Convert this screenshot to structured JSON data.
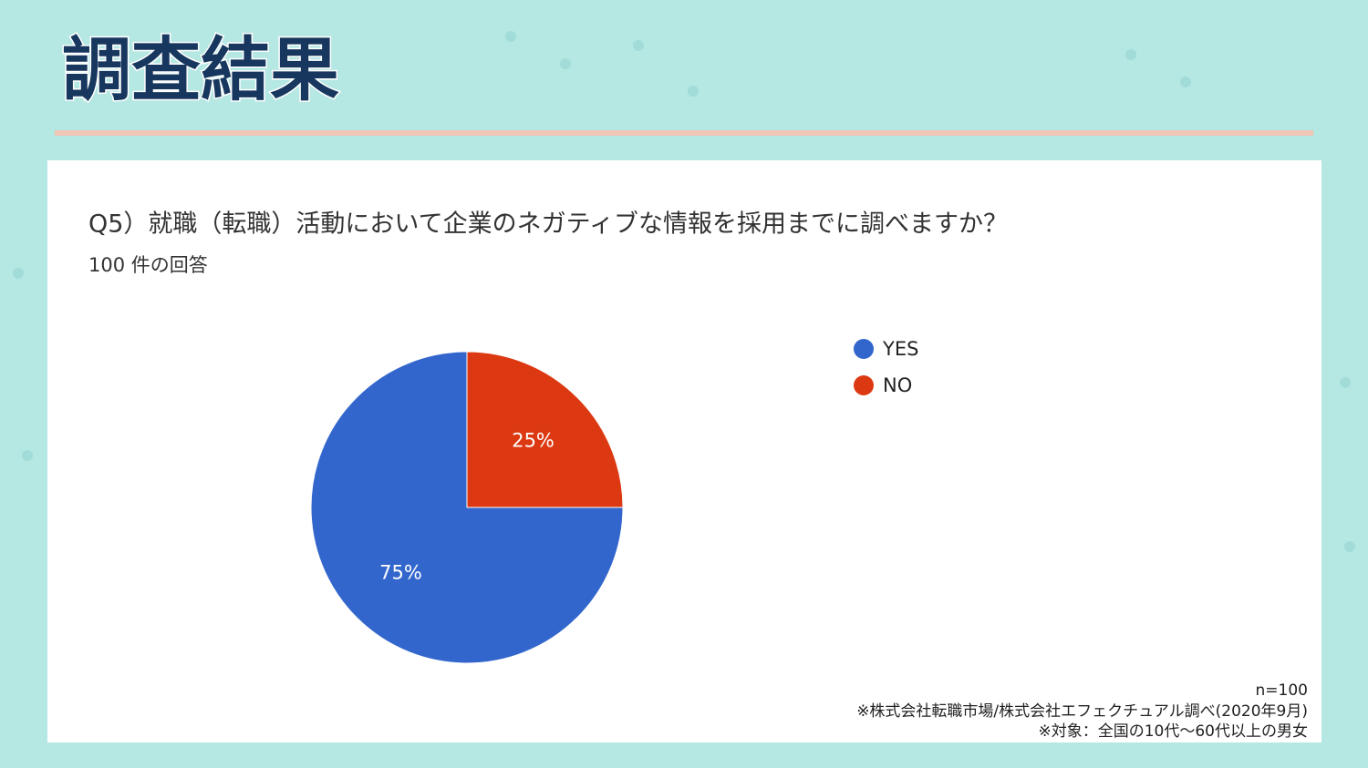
{
  "slide": {
    "title": "調査結果"
  },
  "chart_data": {
    "type": "pie",
    "title": "Q5）就職（転職）活動において企業のネガティブな情報を採用までに調べますか？",
    "subtitle": "100 件の回答",
    "categories": [
      "YES",
      "NO"
    ],
    "values": [
      75,
      25
    ],
    "value_labels": [
      "75%",
      "25%"
    ],
    "colors": [
      "#3366cc",
      "#dc3912"
    ],
    "legend": "right"
  },
  "notes": [
    "n=100",
    "※株式会社転職市場/株式会社エフェクチュアル調べ(2020年9月)",
    "※対象：全国の10代～60代以上の男女"
  ]
}
